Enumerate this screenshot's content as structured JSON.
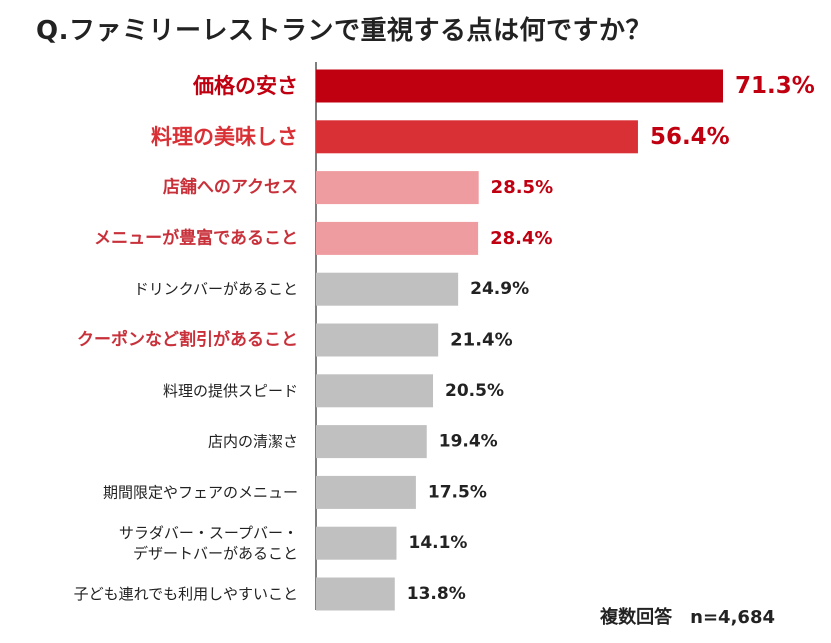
{
  "chart_data": {
    "type": "bar",
    "orientation": "horizontal",
    "title": "Q.ファミリーレストランで重視する点は何ですか？",
    "note": "複数回答　n=4,684",
    "unit": "%",
    "xlabel": "",
    "ylabel": "",
    "xlim": [
      0,
      75
    ],
    "grid": false,
    "categories": [
      "価格の安さ",
      "料理の美味しさ",
      "店舗へのアクセス",
      "メニューが豊富であること",
      "ドリンクバーがあること",
      "クーポンなど割引があること",
      "料理の提供スピード",
      "店内の清潔さ",
      "期間限定やフェアのメニュー",
      "サラダバー・スープバー・\nデザートバーがあること",
      "子ども連れでも利用しやすいこと"
    ],
    "values": [
      71.3,
      56.4,
      28.5,
      28.4,
      24.9,
      21.4,
      20.5,
      19.4,
      17.5,
      14.1,
      13.8
    ],
    "value_labels": [
      "71.3%",
      "56.4%",
      "28.5%",
      "28.4%",
      "24.9%",
      "21.4%",
      "20.5%",
      "19.4%",
      "17.5%",
      "14.1%",
      "13.8%"
    ],
    "bar_colors": [
      "#c00010",
      "#d93035",
      "#ef9ca0",
      "#ef9ca0",
      "#c0c0c0",
      "#c0c0c0",
      "#c0c0c0",
      "#c0c0c0",
      "#c0c0c0",
      "#c0c0c0",
      "#c0c0c0"
    ],
    "label_colors": [
      "#c00010",
      "#d93035",
      "#c8303a",
      "#c8303a",
      "#222222",
      "#c8303a",
      "#222222",
      "#222222",
      "#222222",
      "#222222",
      "#222222"
    ],
    "value_colors": [
      "#c00010",
      "#c00010",
      "#c00010",
      "#c00010",
      "#222222",
      "#222222",
      "#222222",
      "#222222",
      "#222222",
      "#222222",
      "#222222"
    ],
    "emphasis": [
      "strong",
      "strong",
      "medium",
      "medium",
      "normal",
      "medium",
      "normal",
      "normal",
      "normal",
      "normal",
      "normal"
    ]
  }
}
